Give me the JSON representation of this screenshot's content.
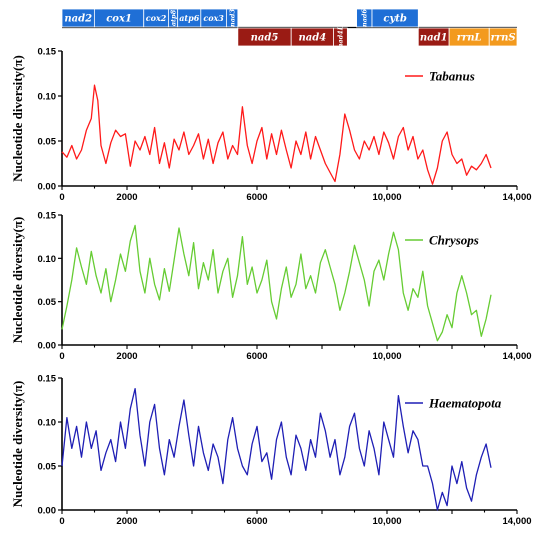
{
  "gene_map": {
    "colors": {
      "top": "#1f6fd6",
      "bottom_protein": "#9a1b14",
      "bottom_rrna": "#f39a1e"
    },
    "top_genes": [
      {
        "label": "nad2",
        "start": 0,
        "end": 1050
      },
      {
        "label": "cox1",
        "start": 1050,
        "end": 2650
      },
      {
        "label": "cox2",
        "start": 2650,
        "end": 3450
      },
      {
        "label": "atp8",
        "start": 3450,
        "end": 3750
      },
      {
        "label": "atp6",
        "start": 3750,
        "end": 4500
      },
      {
        "label": "cox3",
        "start": 4500,
        "end": 5330
      },
      {
        "label": "nad3",
        "start": 5330,
        "end": 5700
      },
      {
        "label": "nad6",
        "start": 9550,
        "end": 10050
      },
      {
        "label": "cytb",
        "start": 10050,
        "end": 11550
      }
    ],
    "bottom_genes": [
      {
        "label": "nad5",
        "start": 5700,
        "end": 7430,
        "kind": "protein"
      },
      {
        "label": "nad4",
        "start": 7430,
        "end": 8800,
        "kind": "protein"
      },
      {
        "label": "nad4L",
        "start": 8800,
        "end": 9250,
        "kind": "protein"
      },
      {
        "label": "nad1",
        "start": 11550,
        "end": 12550,
        "kind": "protein"
      },
      {
        "label": "rrnL",
        "start": 12550,
        "end": 13850,
        "kind": "rrna"
      },
      {
        "label": "rrnS",
        "start": 13850,
        "end": 14750,
        "kind": "rrna"
      }
    ]
  },
  "chart_data": [
    {
      "type": "line",
      "series": [
        {
          "name": "Tabanus",
          "color": "#ff1a1a",
          "x": [
            0,
            150,
            300,
            450,
            600,
            750,
            900,
            1000,
            1100,
            1200,
            1350,
            1500,
            1650,
            1800,
            1950,
            2100,
            2250,
            2400,
            2550,
            2700,
            2850,
            3000,
            3150,
            3300,
            3450,
            3600,
            3750,
            3900,
            4050,
            4200,
            4350,
            4500,
            4650,
            4800,
            4950,
            5100,
            5250,
            5400,
            5550,
            5700,
            5850,
            6000,
            6150,
            6300,
            6450,
            6600,
            6750,
            6900,
            7050,
            7200,
            7350,
            7500,
            7650,
            7800,
            7950,
            8100,
            8250,
            8400,
            8550,
            8700,
            8850,
            9000,
            9150,
            9300,
            9450,
            9600,
            9750,
            9900,
            10050,
            10200,
            10350,
            10500,
            10650,
            10800,
            10950,
            11100,
            11250,
            11400,
            11550,
            11700,
            11850,
            12000,
            12150,
            12300,
            12450,
            12600,
            12750,
            12900,
            13050,
            13200
          ],
          "y": [
            0.038,
            0.032,
            0.045,
            0.03,
            0.04,
            0.062,
            0.075,
            0.112,
            0.095,
            0.045,
            0.025,
            0.048,
            0.062,
            0.055,
            0.058,
            0.022,
            0.05,
            0.04,
            0.055,
            0.035,
            0.065,
            0.025,
            0.048,
            0.02,
            0.052,
            0.04,
            0.06,
            0.035,
            0.045,
            0.058,
            0.03,
            0.052,
            0.025,
            0.048,
            0.06,
            0.03,
            0.045,
            0.035,
            0.088,
            0.045,
            0.025,
            0.05,
            0.065,
            0.03,
            0.058,
            0.035,
            0.062,
            0.04,
            0.02,
            0.05,
            0.035,
            0.06,
            0.03,
            0.055,
            0.04,
            0.025,
            0.015,
            0.005,
            0.035,
            0.08,
            0.062,
            0.04,
            0.03,
            0.05,
            0.04,
            0.055,
            0.035,
            0.06,
            0.048,
            0.03,
            0.055,
            0.065,
            0.04,
            0.055,
            0.03,
            0.04,
            0.018,
            0.002,
            0.02,
            0.05,
            0.06,
            0.035,
            0.025,
            0.03,
            0.012,
            0.022,
            0.018,
            0.025,
            0.035,
            0.02
          ]
        }
      ],
      "xlim": [
        0,
        14000
      ],
      "ylim": [
        0,
        0.15
      ],
      "xticks": [
        "0",
        "2000",
        "6000",
        "10,000",
        "14,000"
      ],
      "xtick_values": [
        0,
        2000,
        6000,
        10000,
        14000
      ],
      "yticks": [
        "0.00",
        "0.05",
        "0.10",
        "0.15"
      ],
      "ylabel": "Nucleotide diversity(π)",
      "legend": "Tabanus",
      "legend_position": "top-right"
    },
    {
      "type": "line",
      "series": [
        {
          "name": "Chrysops",
          "color": "#66cc33",
          "x": [
            0,
            150,
            300,
            450,
            600,
            750,
            900,
            1050,
            1200,
            1350,
            1500,
            1650,
            1800,
            1950,
            2100,
            2250,
            2400,
            2550,
            2700,
            2850,
            3000,
            3150,
            3300,
            3450,
            3600,
            3750,
            3900,
            4050,
            4200,
            4350,
            4500,
            4650,
            4800,
            4950,
            5100,
            5250,
            5400,
            5550,
            5700,
            5850,
            6000,
            6150,
            6300,
            6450,
            6600,
            6750,
            6900,
            7050,
            7200,
            7350,
            7500,
            7650,
            7800,
            7950,
            8100,
            8250,
            8400,
            8550,
            8700,
            8850,
            9000,
            9150,
            9300,
            9450,
            9600,
            9750,
            9900,
            10050,
            10200,
            10350,
            10500,
            10650,
            10800,
            10950,
            11100,
            11250,
            11400,
            11550,
            11700,
            11850,
            12000,
            12150,
            12300,
            12450,
            12600,
            12750,
            12900,
            13050,
            13200
          ],
          "y": [
            0.018,
            0.045,
            0.075,
            0.112,
            0.09,
            0.07,
            0.108,
            0.08,
            0.06,
            0.088,
            0.05,
            0.075,
            0.105,
            0.085,
            0.12,
            0.138,
            0.085,
            0.06,
            0.1,
            0.07,
            0.052,
            0.088,
            0.062,
            0.098,
            0.135,
            0.105,
            0.08,
            0.118,
            0.065,
            0.095,
            0.075,
            0.11,
            0.06,
            0.085,
            0.1,
            0.055,
            0.08,
            0.125,
            0.07,
            0.09,
            0.06,
            0.075,
            0.098,
            0.05,
            0.03,
            0.065,
            0.09,
            0.055,
            0.07,
            0.105,
            0.065,
            0.08,
            0.06,
            0.095,
            0.11,
            0.09,
            0.07,
            0.04,
            0.06,
            0.085,
            0.115,
            0.095,
            0.075,
            0.045,
            0.085,
            0.098,
            0.075,
            0.105,
            0.13,
            0.11,
            0.06,
            0.04,
            0.065,
            0.055,
            0.085,
            0.045,
            0.025,
            0.005,
            0.015,
            0.035,
            0.02,
            0.06,
            0.08,
            0.06,
            0.035,
            0.04,
            0.01,
            0.03,
            0.058
          ]
        }
      ],
      "xlim": [
        0,
        14000
      ],
      "ylim": [
        0,
        0.15
      ],
      "xticks": [
        "0",
        "2000",
        "6000",
        "10,000",
        "14,000"
      ],
      "xtick_values": [
        0,
        2000,
        6000,
        10000,
        14000
      ],
      "yticks": [
        "0.00",
        "0.05",
        "0.10",
        "0.15"
      ],
      "ylabel": "Nucleotide diversity(π)",
      "legend": "Chrysops",
      "legend_position": "top-right"
    },
    {
      "type": "line",
      "series": [
        {
          "name": "Haematopota",
          "color": "#1f1fb5",
          "x": [
            0,
            150,
            300,
            450,
            600,
            750,
            900,
            1050,
            1200,
            1350,
            1500,
            1650,
            1800,
            1950,
            2100,
            2250,
            2400,
            2550,
            2700,
            2850,
            3000,
            3150,
            3300,
            3450,
            3600,
            3750,
            3900,
            4050,
            4200,
            4350,
            4500,
            4650,
            4800,
            4950,
            5100,
            5250,
            5400,
            5550,
            5700,
            5850,
            6000,
            6150,
            6300,
            6450,
            6600,
            6750,
            6900,
            7050,
            7200,
            7350,
            7500,
            7650,
            7800,
            7950,
            8100,
            8250,
            8400,
            8550,
            8700,
            8850,
            9000,
            9150,
            9300,
            9450,
            9600,
            9750,
            9900,
            10050,
            10200,
            10350,
            10500,
            10650,
            10800,
            10950,
            11100,
            11250,
            11400,
            11550,
            11700,
            11850,
            12000,
            12150,
            12300,
            12450,
            12600,
            12750,
            12900,
            13050,
            13200
          ],
          "y": [
            0.05,
            0.105,
            0.07,
            0.095,
            0.06,
            0.1,
            0.07,
            0.09,
            0.045,
            0.065,
            0.08,
            0.055,
            0.1,
            0.07,
            0.115,
            0.138,
            0.085,
            0.05,
            0.1,
            0.12,
            0.07,
            0.04,
            0.08,
            0.06,
            0.095,
            0.125,
            0.085,
            0.05,
            0.095,
            0.065,
            0.045,
            0.075,
            0.06,
            0.03,
            0.08,
            0.105,
            0.07,
            0.05,
            0.04,
            0.075,
            0.095,
            0.055,
            0.065,
            0.035,
            0.08,
            0.1,
            0.06,
            0.04,
            0.085,
            0.07,
            0.045,
            0.08,
            0.06,
            0.11,
            0.09,
            0.06,
            0.08,
            0.04,
            0.06,
            0.095,
            0.11,
            0.07,
            0.05,
            0.09,
            0.07,
            0.04,
            0.1,
            0.08,
            0.06,
            0.13,
            0.095,
            0.065,
            0.09,
            0.08,
            0.05,
            0.05,
            0.03,
            0.0,
            0.02,
            0.005,
            0.05,
            0.03,
            0.055,
            0.025,
            0.01,
            0.04,
            0.06,
            0.075,
            0.048
          ]
        }
      ],
      "xlim": [
        0,
        14000
      ],
      "ylim": [
        0,
        0.15
      ],
      "xticks": [
        "0",
        "2000",
        "6000",
        "10,000",
        "14,000"
      ],
      "xtick_values": [
        0,
        2000,
        6000,
        10000,
        14000
      ],
      "yticks": [
        "0.00",
        "0.05",
        "0.10",
        "0.15"
      ],
      "ylabel": "Nucleotide diversity(π)",
      "legend": "Haematopota",
      "legend_position": "top-right"
    }
  ]
}
